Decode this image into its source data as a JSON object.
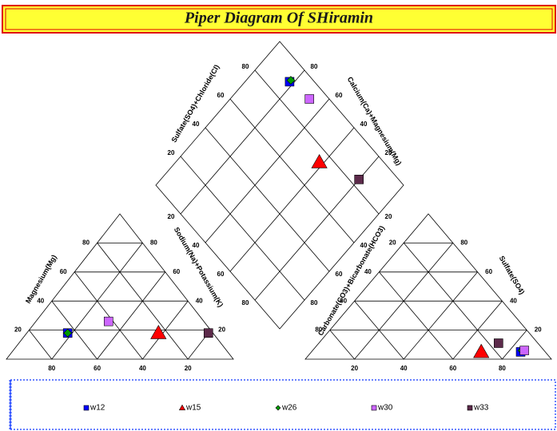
{
  "chart_data": {
    "type": "piper",
    "title": "Piper Diagram Of SHiramin",
    "ticks": [
      20,
      40,
      60,
      80
    ],
    "labels": {
      "magnesium": "Magnesium(Mg)",
      "sodium_potassium": "Sodium(Na)+Potassium(K)",
      "carbonate_bicarbonate": "Carbonate(CO3)+Bicarbonate(HCO3)",
      "sulfate": "Sulfate(SO4)",
      "sulfate_chloride": "Sulfate(SO4)+Chloride(Cl)",
      "calcium_magnesium": "Calcium(Ca)+Magnesium(Mg)"
    },
    "series": [
      {
        "name": "w12",
        "color": "#0000ff",
        "marker": "square",
        "cations": [
          64,
          18,
          18
        ],
        "anions": [
          10,
          5,
          85
        ]
      },
      {
        "name": "w15",
        "color": "#ff0000",
        "marker": "triangle",
        "cations": [
          24,
          18,
          58
        ],
        "anions": [
          26,
          5,
          69
        ]
      },
      {
        "name": "w26",
        "color": "#009900",
        "marker": "diamond",
        "cations": [
          64,
          18,
          18
        ],
        "anions": [
          9,
          6,
          85
        ]
      },
      {
        "name": "w30",
        "color": "#cc66ff",
        "marker": "square",
        "cations": [
          42,
          26,
          32
        ],
        "anions": [
          8,
          6,
          86
        ]
      },
      {
        "name": "w33",
        "color": "#5c2a4a",
        "marker": "square",
        "cations": [
          2,
          18,
          80
        ],
        "anions": [
          16,
          11,
          73
        ]
      }
    ]
  }
}
